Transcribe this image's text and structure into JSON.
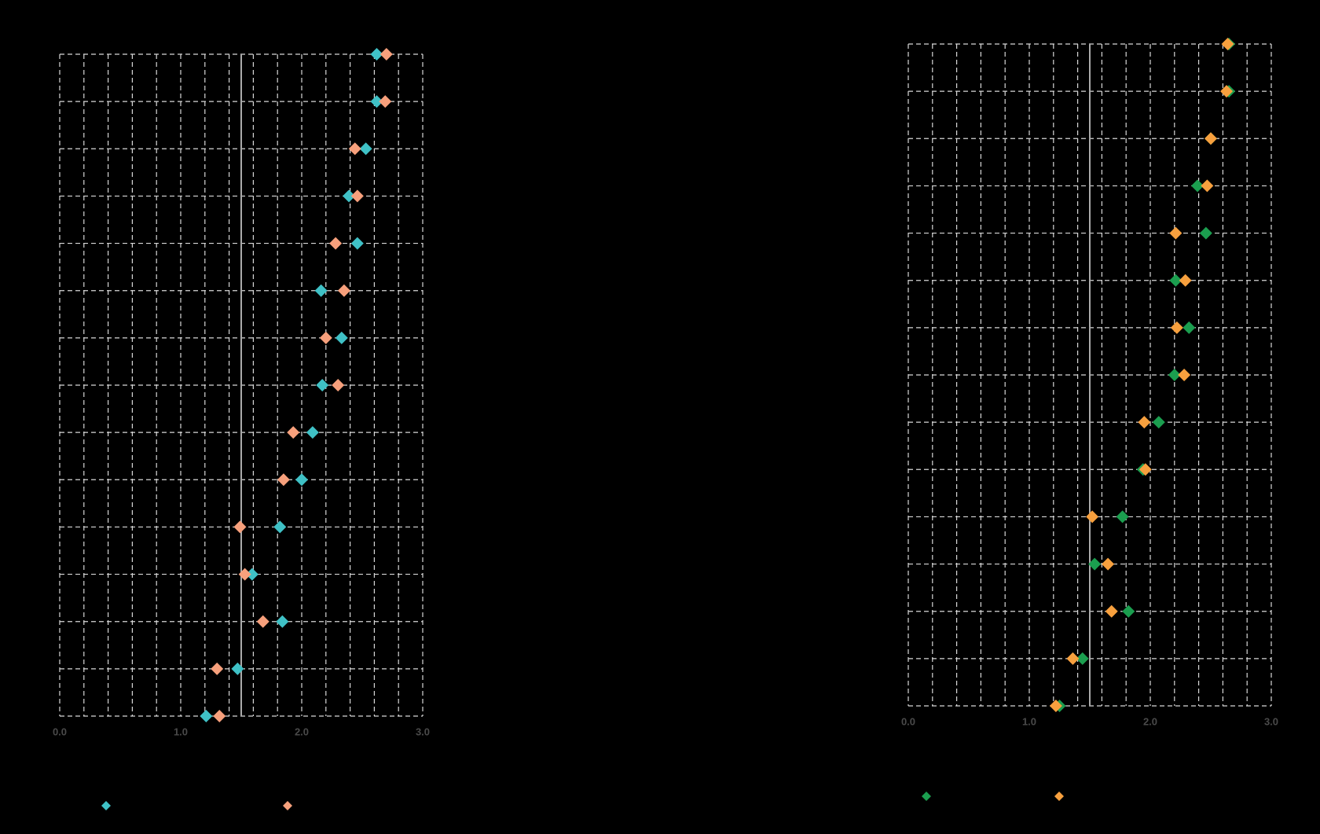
{
  "chart_data": [
    {
      "type": "dot",
      "categories": [
        null,
        null,
        null,
        null,
        null,
        null,
        null,
        null,
        null,
        null,
        null,
        null,
        null,
        null,
        null
      ],
      "series": [
        {
          "color": "#3fc1c6",
          "values": [
            2.62,
            2.62,
            2.53,
            2.39,
            2.46,
            2.16,
            2.33,
            2.17,
            2.09,
            2.0,
            1.82,
            1.59,
            1.84,
            1.47,
            1.21
          ]
        },
        {
          "color": "#f7a07c",
          "values": [
            2.7,
            2.69,
            2.44,
            2.46,
            2.28,
            2.35,
            2.2,
            2.3,
            1.93,
            1.85,
            1.49,
            1.53,
            1.68,
            1.3,
            1.32
          ]
        }
      ],
      "xlim": [
        0,
        3
      ],
      "xticks": [
        {
          "value": 0,
          "label": "0.0"
        },
        {
          "value": 1,
          "label": "1.0"
        },
        {
          "value": 2,
          "label": "2.0"
        },
        {
          "value": 3,
          "label": "3.0"
        }
      ],
      "x_gridlines": [
        0,
        0.2,
        0.4,
        0.6,
        0.8,
        1,
        1.2,
        1.4,
        1.6,
        1.8,
        2,
        2.2,
        2.4,
        2.6,
        2.8,
        3
      ],
      "refline": 1.5,
      "grid": true
    },
    {
      "type": "dot",
      "categories": [
        null,
        null,
        null,
        null,
        null,
        null,
        null,
        null,
        null,
        null,
        null,
        null,
        null,
        null,
        null
      ],
      "series": [
        {
          "color": "#1b9e4f",
          "values": [
            2.65,
            2.65,
            2.5,
            2.39,
            2.46,
            2.21,
            2.32,
            2.2,
            2.07,
            1.94,
            1.77,
            1.54,
            1.82,
            1.44,
            1.25
          ]
        },
        {
          "color": "#f7a03e",
          "values": [
            2.64,
            2.63,
            2.5,
            2.47,
            2.21,
            2.29,
            2.22,
            2.28,
            1.95,
            1.96,
            1.52,
            1.65,
            1.68,
            1.36,
            1.22
          ]
        }
      ],
      "xlim": [
        0,
        3
      ],
      "xticks": [
        {
          "value": 0,
          "label": "0.0"
        },
        {
          "value": 1,
          "label": "1.0"
        },
        {
          "value": 2,
          "label": "2.0"
        },
        {
          "value": 3,
          "label": "3.0"
        }
      ],
      "x_gridlines": [
        0,
        0.2,
        0.4,
        0.6,
        0.8,
        1,
        1.2,
        1.4,
        1.6,
        1.8,
        2,
        2.2,
        2.4,
        2.6,
        2.8,
        3
      ],
      "refline": 1.5,
      "grid": true
    }
  ]
}
